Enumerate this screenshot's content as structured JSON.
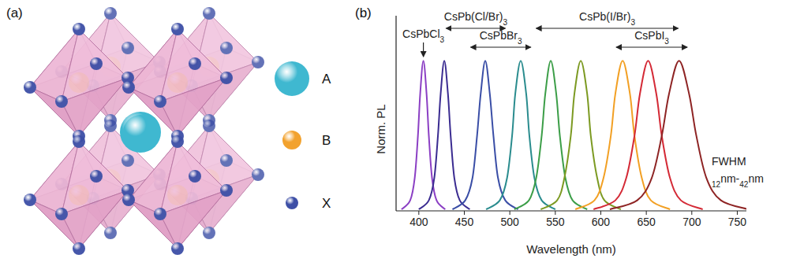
{
  "chart_data": {
    "type": "line",
    "label": "(b)",
    "x_label": "Wavelength (nm)",
    "y_label": "Norm. PL",
    "xlim": [
      375,
      760
    ],
    "ylim": [
      0,
      1.3
    ],
    "xticks": [
      400,
      450,
      500,
      550,
      600,
      650,
      700,
      750
    ],
    "tick_labels": "x",
    "grid": false,
    "series": [
      {
        "color": "#8b3fc4",
        "x": [
          381,
          390.5,
          395.5,
          399,
          401.5,
          405,
          408.5,
          411,
          414.5,
          419.5,
          429
        ],
        "values": [
          0.01,
          0.07,
          0.22,
          0.5,
          0.78,
          1.0,
          0.78,
          0.5,
          0.22,
          0.07,
          0.01
        ]
      },
      {
        "color": "#3b2c91",
        "x": [
          400,
          411,
          417,
          421,
          424,
          428,
          432,
          435,
          439,
          445,
          456
        ],
        "values": [
          0.01,
          0.07,
          0.22,
          0.5,
          0.78,
          1.0,
          0.78,
          0.5,
          0.22,
          0.07,
          0.01
        ]
      },
      {
        "color": "#3a4ea6",
        "x": [
          437,
          451,
          459,
          464,
          468,
          473,
          478,
          482,
          487,
          495,
          509
        ],
        "values": [
          0.01,
          0.07,
          0.22,
          0.5,
          0.78,
          1.0,
          0.78,
          0.5,
          0.22,
          0.07,
          0.01
        ]
      },
      {
        "color": "#2a8c8e",
        "x": [
          474,
          489,
          497,
          502.5,
          506,
          512,
          518,
          521.5,
          527,
          535,
          550
        ],
        "values": [
          0.01,
          0.07,
          0.22,
          0.5,
          0.78,
          1.0,
          0.78,
          0.5,
          0.22,
          0.07,
          0.01
        ]
      },
      {
        "color": "#3c9e48",
        "x": [
          505,
          521,
          529,
          535,
          539,
          545,
          551,
          555,
          561,
          569,
          585
        ],
        "values": [
          0.01,
          0.07,
          0.22,
          0.5,
          0.78,
          1.0,
          0.78,
          0.5,
          0.22,
          0.07,
          0.01
        ]
      },
      {
        "color": "#7c9a22",
        "x": [
          534,
          552,
          560,
          567,
          571,
          578,
          585,
          589,
          596,
          604,
          622
        ],
        "values": [
          0.01,
          0.07,
          0.22,
          0.5,
          0.78,
          1.0,
          0.78,
          0.5,
          0.22,
          0.07,
          0.01
        ]
      },
      {
        "color": "#f2a024",
        "x": [
          572,
          593,
          603,
          611,
          616,
          624,
          632,
          637,
          645,
          655,
          676
        ],
        "values": [
          0.01,
          0.07,
          0.22,
          0.5,
          0.78,
          1.0,
          0.78,
          0.5,
          0.22,
          0.07,
          0.01
        ]
      },
      {
        "color": "#d42a36",
        "x": [
          592,
          616,
          628,
          637,
          643,
          652,
          661,
          667,
          676,
          688,
          712
        ],
        "values": [
          0.01,
          0.07,
          0.22,
          0.5,
          0.78,
          1.0,
          0.78,
          0.5,
          0.22,
          0.07,
          0.01
        ]
      },
      {
        "color": "#8e2424",
        "x": [
          610,
          640,
          656,
          667,
          675,
          686,
          697,
          705,
          716,
          732,
          762
        ],
        "values": [
          0.01,
          0.07,
          0.22,
          0.5,
          0.78,
          1.0,
          0.78,
          0.5,
          0.22,
          0.07,
          0.01
        ]
      }
    ],
    "annotations": [
      {
        "text": "CsPbCl3",
        "x": 405
      },
      {
        "text": "CsPb(Cl/Br)3",
        "x": [
          430,
          495
        ]
      },
      {
        "text": "CsPbBr3",
        "x": [
          457,
          523
        ]
      },
      {
        "text": "CsPb(I/Br)3",
        "x": [
          529,
          685
        ]
      },
      {
        "text": "CsPbI3",
        "x": [
          617,
          695
        ]
      },
      {
        "text": "FWHM"
      },
      {
        "text": "12nm-42nm"
      }
    ]
  },
  "diagram": {
    "label": "(a)",
    "legend": [
      {
        "label": "A",
        "color": "#3fb8d0"
      },
      {
        "label": "B",
        "color": "#f2a22e"
      },
      {
        "label": "X",
        "color": "#3d4fa6"
      }
    ]
  }
}
